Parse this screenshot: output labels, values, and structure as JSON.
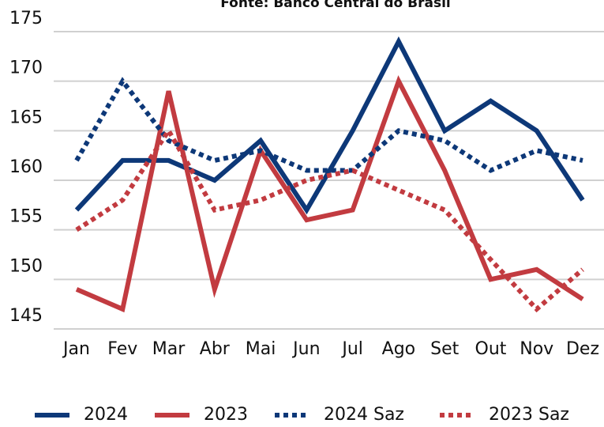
{
  "chart_data": {
    "type": "line",
    "subtitle": "Fonte: Banco Central do Brasil",
    "categories": [
      "Jan",
      "Fev",
      "Mar",
      "Abr",
      "Mai",
      "Jun",
      "Jul",
      "Ago",
      "Set",
      "Out",
      "Nov",
      "Dez"
    ],
    "series": [
      {
        "name": "2024",
        "color": "#0d3878",
        "dash": false,
        "values": [
          157,
          162,
          162,
          160,
          164,
          157,
          165,
          174,
          165,
          168,
          165,
          158
        ]
      },
      {
        "name": "2023",
        "color": "#c23b40",
        "dash": false,
        "values": [
          149,
          147,
          169,
          149,
          163,
          156,
          157,
          170,
          161,
          150,
          151,
          148
        ]
      },
      {
        "name": "2024 Saz",
        "color": "#0d3878",
        "dash": true,
        "values": [
          162,
          170,
          164,
          162,
          163,
          161,
          161,
          165,
          164,
          161,
          163,
          162
        ]
      },
      {
        "name": "2023 Saz",
        "color": "#c23b40",
        "dash": true,
        "values": [
          155,
          158,
          165,
          157,
          158,
          160,
          161,
          159,
          157,
          152,
          147,
          151
        ]
      }
    ],
    "ylim": [
      145,
      175
    ],
    "yticks": [
      145,
      150,
      155,
      160,
      165,
      170,
      175
    ],
    "grid": true,
    "legend": "bottom"
  }
}
